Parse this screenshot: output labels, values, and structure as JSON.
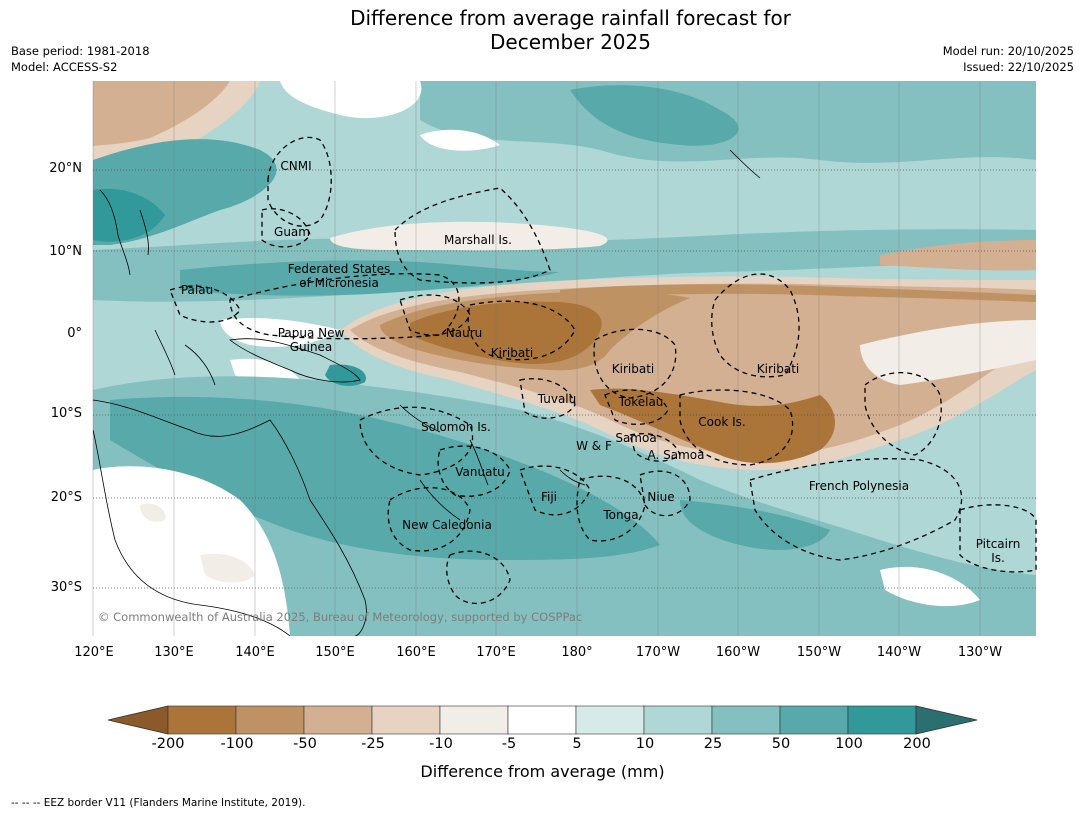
{
  "title_line1": "Difference from average rainfall forecast for",
  "title_line2": "December 2025",
  "meta_left": {
    "line1": "Base period: 1981-2018",
    "line2": "Model: ACCESS-S2"
  },
  "meta_right": {
    "line1": "Model run: 20/10/2025",
    "line2": "Issued: 22/10/2025"
  },
  "lat_labels": [
    "20°N",
    "10°N",
    "0°",
    "10°S",
    "20°S",
    "30°S"
  ],
  "lon_labels": [
    "120°E",
    "130°E",
    "140°E",
    "150°E",
    "160°E",
    "170°E",
    "180°",
    "170°W",
    "160°W",
    "150°W",
    "140°W",
    "130°W"
  ],
  "places": {
    "cnmi": "CNMI",
    "guam": "Guam",
    "marshall": "Marshall Is.",
    "fsm_1": "Federated States",
    "fsm_2": "of Micronesia",
    "palau": "Palau",
    "png_1": "Papua New",
    "png_2": "Guinea",
    "nauru": "Nauru",
    "kiribati_w": "Kiribati",
    "kiribati_c": "Kiribati",
    "kiribati_e": "Kiribati",
    "tuvalu": "Tuvalu",
    "tokelau": "Tokelau",
    "cook": "Cook Is.",
    "solomon": "Solomon Is.",
    "samoa": "Samoa",
    "wf": "W & F",
    "asamoa": "A. Samoa",
    "vanuatu": "Vanuatu",
    "fiji": "Fiji",
    "niue": "Niue",
    "tonga": "Tonga",
    "newcal": "New Caledonia",
    "frpoly": "French Polynesia",
    "pitcairn_1": "Pitcairn",
    "pitcairn_2": "Is."
  },
  "copyright": "© Commonwealth of Australia 2025, Bureau of Meteorology, supported by COSPPac",
  "colorbar": {
    "ticks": [
      "-200",
      "-100",
      "-50",
      "-25",
      "-10",
      "-5",
      "5",
      "10",
      "25",
      "50",
      "100",
      "200"
    ],
    "colors": [
      "#8a5a2b",
      "#ab7439",
      "#bf9264",
      "#d3b092",
      "#e6d3c2",
      "#f2ede6",
      "#ffffff",
      "#d6eae8",
      "#aed7d6",
      "#85c0c0",
      "#57a9aa",
      "#32999a",
      "#2c6f70"
    ],
    "label": "Difference from average (mm)"
  },
  "footnote": "--  --  -- EEZ border V11 (Flanders Marine Institute, 2019)."
}
